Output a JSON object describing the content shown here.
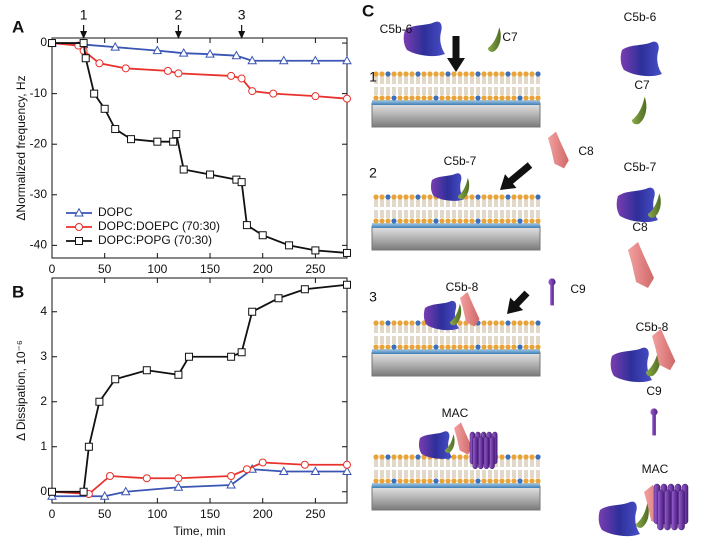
{
  "chart_data": [
    {
      "type": "line",
      "panel": "A",
      "ylabel": "ΔNormalized frequency, Hz",
      "xlim": [
        0,
        280
      ],
      "xticks": [
        0,
        50,
        100,
        150,
        200,
        250
      ],
      "ylim": [
        -42.5,
        1
      ],
      "yticks": [
        0,
        -10,
        -20,
        -30,
        -40
      ],
      "legend": "lower left",
      "annotations": [
        {
          "text": "1",
          "x": 30
        },
        {
          "text": "2",
          "x": 120
        },
        {
          "text": "3",
          "x": 180
        }
      ],
      "series": [
        {
          "name": "DOPC",
          "color": "#3a55b4",
          "marker": "triangle",
          "x": [
            0,
            30,
            60,
            100,
            125,
            150,
            175,
            190,
            220,
            250,
            280
          ],
          "values": [
            0,
            -0.3,
            -0.8,
            -1.5,
            -2,
            -2.2,
            -2.5,
            -3.5,
            -3.5,
            -3.5,
            -3.5
          ]
        },
        {
          "name": "DOPC:DOEPC (70:30)",
          "color": "#e8322d",
          "marker": "circle",
          "x": [
            0,
            25,
            30,
            45,
            70,
            110,
            120,
            170,
            180,
            190,
            210,
            250,
            280
          ],
          "values": [
            0,
            -0.5,
            -1.5,
            -4,
            -5,
            -5.5,
            -6,
            -6.5,
            -7,
            -9.5,
            -10,
            -10.5,
            -11
          ]
        },
        {
          "name": "DOPC:POPG (70:30)",
          "color": "#111111",
          "marker": "square",
          "x": [
            0,
            30,
            32,
            40,
            50,
            60,
            75,
            100,
            115,
            118,
            125,
            150,
            175,
            180,
            185,
            200,
            225,
            250,
            280
          ],
          "values": [
            0,
            0,
            -3,
            -10,
            -13,
            -17,
            -19,
            -19.5,
            -19.5,
            -18,
            -25,
            -26,
            -27,
            -27.5,
            -36,
            -38,
            -40,
            -41,
            -41.5
          ]
        }
      ]
    },
    {
      "type": "line",
      "panel": "B",
      "ylabel": "Δ Dissipation, 10⁻⁶",
      "xlabel": "Time, min",
      "xlim": [
        0,
        280
      ],
      "xticks": [
        0,
        50,
        100,
        150,
        200,
        250
      ],
      "ylim": [
        -0.25,
        4.75
      ],
      "yticks": [
        0,
        1,
        2,
        3,
        4
      ],
      "series": [
        {
          "name": "DOPC",
          "color": "#3a55b4",
          "marker": "triangle",
          "x": [
            0,
            50,
            70,
            120,
            170,
            190,
            220,
            250,
            280
          ],
          "values": [
            -0.1,
            -0.1,
            0,
            0.1,
            0.15,
            0.5,
            0.45,
            0.45,
            0.45
          ]
        },
        {
          "name": "DOPC:DOEPC (70:30)",
          "color": "#e8322d",
          "marker": "circle",
          "x": [
            0,
            35,
            55,
            90,
            120,
            170,
            185,
            200,
            240,
            280
          ],
          "values": [
            0,
            -0.05,
            0.35,
            0.3,
            0.3,
            0.35,
            0.5,
            0.65,
            0.6,
            0.6
          ]
        },
        {
          "name": "DOPC:POPG (70:30)",
          "color": "#111111",
          "marker": "square",
          "x": [
            0,
            30,
            35,
            45,
            60,
            90,
            120,
            130,
            170,
            180,
            190,
            215,
            240,
            280
          ],
          "values": [
            0,
            0,
            1,
            2,
            2.5,
            2.7,
            2.6,
            3,
            3,
            3.1,
            4,
            4.3,
            4.5,
            4.6
          ]
        }
      ]
    }
  ],
  "diagram": {
    "panel": "C",
    "labels": [
      "C5b-6",
      "C7",
      "1",
      "C8",
      "C5b-7",
      "2",
      "3",
      "C5b-8",
      "C9",
      "MAC"
    ],
    "legend": [
      "C5b-6",
      "C7",
      "C5b-7",
      "C8",
      "C5b-8",
      "C9",
      "MAC"
    ]
  }
}
